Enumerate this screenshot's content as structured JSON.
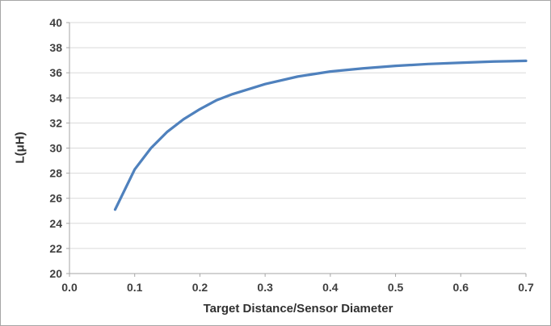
{
  "chart_data": {
    "type": "line",
    "title": "",
    "xlabel": "Target Distance/Sensor Diameter",
    "ylabel": "L(μH)",
    "xlim": [
      0.0,
      0.7
    ],
    "ylim": [
      20,
      40
    ],
    "grid": true,
    "legend": false,
    "x_ticks": {
      "values": [
        0.0,
        0.1,
        0.2,
        0.3,
        0.4,
        0.5,
        0.6,
        0.7
      ],
      "labels": [
        "0.0",
        "0.1",
        "0.2",
        "0.3",
        "0.4",
        "0.5",
        "0.6",
        "0.7"
      ]
    },
    "y_ticks": {
      "values": [
        20,
        22,
        24,
        26,
        28,
        30,
        32,
        34,
        36,
        38,
        40
      ],
      "labels": [
        "20",
        "22",
        "24",
        "26",
        "28",
        "30",
        "32",
        "34",
        "36",
        "38",
        "40"
      ]
    },
    "series": [
      {
        "x": [
          0.07,
          0.1,
          0.125,
          0.15,
          0.175,
          0.2,
          0.225,
          0.25,
          0.3,
          0.35,
          0.4,
          0.45,
          0.5,
          0.55,
          0.6,
          0.65,
          0.7
        ],
        "y": [
          25.1,
          28.3,
          30.0,
          31.3,
          32.3,
          33.1,
          33.8,
          34.3,
          35.1,
          35.7,
          36.1,
          36.35,
          36.55,
          36.7,
          36.8,
          36.9,
          36.95
        ]
      }
    ],
    "colors": {
      "line": "#4f81bd",
      "grid": "#d9d9d9",
      "axis": "#a6a6a6",
      "text": "#3f3f3f"
    }
  }
}
